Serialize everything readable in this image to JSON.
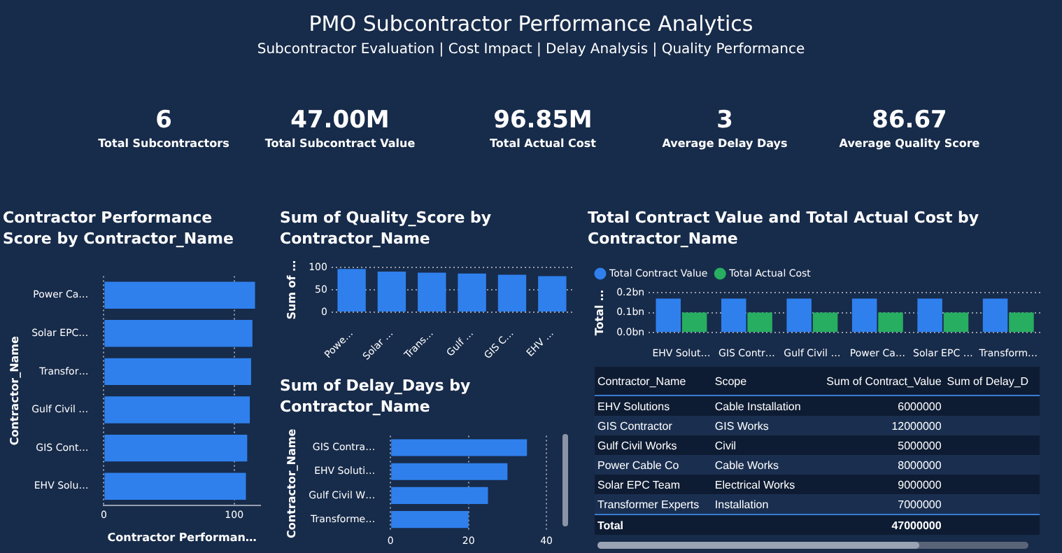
{
  "chart_data": [
    {
      "type": "other",
      "title": "PMO Subcontractor Performance Analytics",
      "subtitle": "Subcontractor Evaluation | Cost Impact | Delay Analysis | Quality Performance",
      "annotations": [
        "6",
        "Total Subcontractors",
        "47.00M",
        "Total Subcontract Value",
        "96.85M",
        "Total Actual Cost",
        "3",
        "Average Delay Days",
        "86.67",
        "Average Quality Score"
      ]
    },
    {
      "type": "bar",
      "orientation": "horizontal",
      "title": "Contractor Performance Score by Contractor_Name",
      "xlabel": "Contractor Performan…",
      "ylabel": "Contractor_Name",
      "categories": [
        "Power Ca…",
        "Solar EPC…",
        "Transfor…",
        "Gulf Civil …",
        "GIS Cont…",
        "EHV Solu…"
      ],
      "values": [
        116,
        114,
        113,
        112,
        110,
        109
      ],
      "color": "#2f80ed",
      "xlim": [
        0,
        120
      ],
      "xticks": [
        0,
        100
      ],
      "grid": "x"
    },
    {
      "type": "bar",
      "title": "Sum of Quality_Score by Contractor_Name",
      "ylabel": "Sum of …",
      "categories": [
        "Powe…",
        "Solar …",
        "Trans…",
        "Gulf …",
        "GIS C…",
        "EHV …"
      ],
      "values": [
        97,
        91,
        89,
        87,
        84,
        81
      ],
      "color": "#2f80ed",
      "ylim": [
        0,
        100
      ],
      "yticks": [
        0,
        50,
        100
      ],
      "grid": "y"
    },
    {
      "type": "bar",
      "orientation": "horizontal",
      "title": "Sum of Delay_Days by Contractor_Name",
      "ylabel": "Contractor_Name",
      "categories": [
        "GIS Contra…",
        "EHV Soluti…",
        "Gulf Civil W…",
        "Transforme…"
      ],
      "values": [
        35,
        30,
        25,
        20
      ],
      "color": "#2f80ed",
      "xlim": [
        0,
        40
      ],
      "xticks": [
        0,
        20,
        40
      ],
      "grid": "x"
    },
    {
      "type": "bar",
      "title": "Total Contract Value and Total Actual Cost by Contractor_Name",
      "ylabel": "Total …",
      "categories": [
        "EHV Solut…",
        "GIS Contr…",
        "Gulf Civil …",
        "Power Ca…",
        "Solar EPC …",
        "Transform…"
      ],
      "series": [
        {
          "name": "Total Contract Value",
          "color": "#2f80ed",
          "values": [
            0.17,
            0.17,
            0.17,
            0.17,
            0.17,
            0.17
          ]
        },
        {
          "name": "Total Actual Cost",
          "color": "#27ae60",
          "values": [
            0.1,
            0.1,
            0.1,
            0.1,
            0.1,
            0.1
          ]
        }
      ],
      "ylim": [
        0,
        0.2
      ],
      "yticks": [
        {
          "value": 0,
          "label": "0.0bn"
        },
        {
          "value": 0.1,
          "label": "0.1bn"
        },
        {
          "value": 0.2,
          "label": "0.2bn"
        }
      ],
      "grid": "y",
      "legend": "top left"
    },
    {
      "type": "other",
      "categories": [
        "EHV Solutions",
        "GIS Contractor",
        "Gulf Civil Works",
        "Power Cable Co",
        "Solar EPC Team",
        "Transformer Experts"
      ],
      "values": [
        6000000,
        12000000,
        5000000,
        8000000,
        9000000,
        7000000
      ],
      "data_labels": true,
      "totals": [
        "47000000"
      ],
      "annotations": [
        "Contractor_Name",
        "Scope",
        "Sum of Contract_Value",
        "Sum of Delay_D",
        "Cable Installation",
        "GIS Works",
        "Civil",
        "Cable Works",
        "Electrical Works",
        "Installation",
        "Total"
      ]
    }
  ]
}
